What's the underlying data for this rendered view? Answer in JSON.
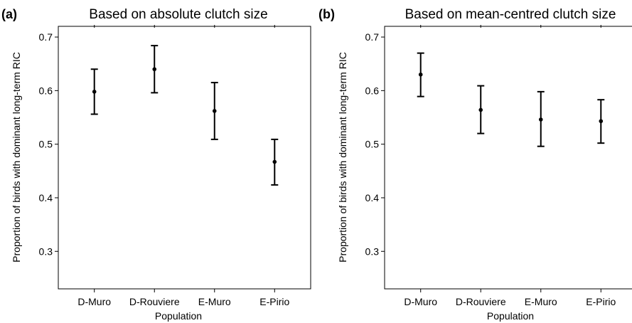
{
  "chart_data": [
    {
      "type": "scatter",
      "panel_label": "(a)",
      "title": "Based on absolute clutch size",
      "xlabel": "Population",
      "ylabel": "Proportion of birds with dominant long-term RIC",
      "categories": [
        "D-Muro",
        "D-Rouviere",
        "E-Muro",
        "E-Pirio"
      ],
      "values": [
        0.598,
        0.64,
        0.562,
        0.467
      ],
      "lower": [
        0.556,
        0.596,
        0.509,
        0.424
      ],
      "upper": [
        0.64,
        0.684,
        0.615,
        0.509
      ],
      "ylim": [
        0.23,
        0.72
      ],
      "yticks": [
        0.3,
        0.4,
        0.5,
        0.6,
        0.7
      ],
      "ytick_labels": [
        "0.3",
        "0.4",
        "0.5",
        "0.6",
        "0.7"
      ],
      "grid": false,
      "error_bars": true
    },
    {
      "type": "scatter",
      "panel_label": "(b)",
      "title": "Based on mean-centred clutch size",
      "xlabel": "Population",
      "ylabel": "Proportion of birds with dominant long-term RIC",
      "categories": [
        "D-Muro",
        "D-Rouviere",
        "E-Muro",
        "E-Pirio"
      ],
      "values": [
        0.63,
        0.564,
        0.546,
        0.543
      ],
      "lower": [
        0.589,
        0.52,
        0.496,
        0.502
      ],
      "upper": [
        0.67,
        0.609,
        0.598,
        0.583
      ],
      "ylim": [
        0.23,
        0.72
      ],
      "yticks": [
        0.3,
        0.4,
        0.5,
        0.6,
        0.7
      ],
      "ytick_labels": [
        "0.3",
        "0.4",
        "0.5",
        "0.6",
        "0.7"
      ],
      "grid": false,
      "error_bars": true
    }
  ]
}
